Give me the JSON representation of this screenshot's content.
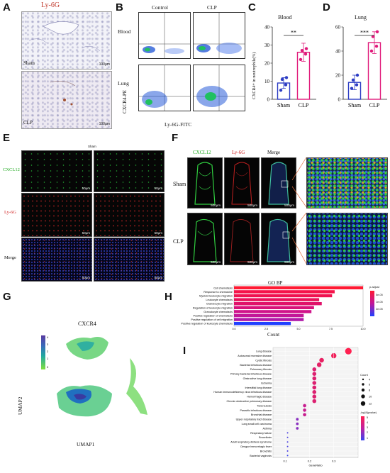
{
  "panels": {
    "A": {
      "letter": "A",
      "title": "Ly-6G",
      "sham_label": "Sham",
      "clp_label": "CLP",
      "scale": "100μm"
    },
    "B": {
      "letter": "B",
      "col_control": "Control",
      "col_clp": "CLP",
      "row_blood": "Blood",
      "row_lung": "Lung",
      "ylabel": "CXCR4-PE",
      "xlabel": "Ly-6G-FITC"
    },
    "C": {
      "letter": "C",
      "title": "Blood",
      "ylabel": "CXCR4+ in neutrophils(%)",
      "sig": "**",
      "categories": [
        "Sham",
        "CLP"
      ],
      "yticks": [
        "0",
        "10",
        "20",
        "30",
        "40"
      ]
    },
    "D": {
      "letter": "D",
      "title": "Lung",
      "sig": "***",
      "categories": [
        "Sham",
        "CLP"
      ],
      "yticks": [
        "0",
        "20",
        "40",
        "60"
      ]
    },
    "E": {
      "letter": "E",
      "title": "Sham",
      "rows": [
        "CXCL12",
        "Ly-6G",
        "Merge"
      ],
      "scale": "50μm"
    },
    "F": {
      "letter": "F",
      "cols": [
        "CXCL12",
        "Ly-6G",
        "Merge"
      ],
      "rows": [
        "Sham",
        "CLP"
      ],
      "scale": "500μm"
    },
    "G": {
      "letter": "G",
      "title": "CXCR4",
      "xlabel": "UMAP1",
      "ylabel": "UMAP2",
      "legend": [
        "4",
        "3",
        "2",
        "1",
        "0"
      ]
    },
    "H": {
      "letter": "H",
      "title": "GO BP",
      "xlabel": "Count",
      "legend_title": "p.adjust",
      "legend_ticks": [
        "5e-05",
        "1e-05",
        "2e-05"
      ],
      "xticks": [
        "0.0",
        "2.5",
        "5.0",
        "7.5",
        "10.0"
      ]
    },
    "I": {
      "letter": "I",
      "xlabel": "GeneRatio",
      "legend_count": "Count",
      "legend_p": "-log10(pvalue)",
      "count_ticks": [
        "4",
        "6",
        "8",
        "10",
        "12"
      ],
      "p_ticks": [
        "5",
        "4",
        "3",
        "2",
        "1"
      ],
      "xticks": [
        "0.1",
        "0.2",
        "0.3"
      ]
    }
  },
  "chart_data": [
    {
      "type": "bar",
      "panel": "C",
      "title": "Blood",
      "ylabel": "CXCR4+ in neutrophils(%)",
      "categories": [
        "Sham",
        "CLP"
      ],
      "values": [
        9,
        26
      ],
      "errors": [
        3,
        5
      ],
      "points": [
        [
          5,
          8,
          11,
          12
        ],
        [
          22,
          25,
          27,
          28
        ]
      ],
      "colors": [
        "#2c3cc4",
        "#e0197a"
      ],
      "ylim": [
        0,
        40
      ]
    },
    {
      "type": "bar",
      "panel": "D",
      "title": "Lung",
      "categories": [
        "Sham",
        "CLP"
      ],
      "values": [
        14,
        47
      ],
      "errors": [
        6,
        9
      ],
      "points": [
        [
          9,
          12,
          16,
          20
        ],
        [
          40,
          44,
          52,
          56
        ]
      ],
      "colors": [
        "#2c3cc4",
        "#e0197a"
      ],
      "ylim": [
        0,
        60
      ]
    },
    {
      "type": "bar",
      "panel": "H",
      "title": "GO BP",
      "xlabel": "Count",
      "orientation": "horizontal",
      "categories": [
        "Cell chemotaxis",
        "Response to chemokine",
        "Myeloid leukocyte migration",
        "Leukocyte chemotaxis",
        "Granulocyte migration",
        "Regulation of leukocyte migration",
        "Granulocyte chemotaxis",
        "Positive regulation of chemotaxis",
        "Positive regulation of cell migration",
        "Positive regulation of leukocyte chemotaxis"
      ],
      "values": [
        10,
        7.8,
        7.6,
        6.6,
        6.8,
        6.2,
        6.0,
        5.4,
        5.4,
        4.4
      ],
      "colors": [
        "#ff1a33",
        "#f5144a",
        "#ef1250",
        "#e8125a",
        "#e0126a",
        "#d8127a",
        "#d0148a",
        "#c21698",
        "#b01aa8",
        "#2040ff"
      ],
      "xlim": [
        0,
        10
      ]
    },
    {
      "type": "scatter",
      "panel": "I",
      "xlabel": "GeneRatio",
      "categories": [
        "Lung disease",
        "Autosomal recessive disease",
        "Cystic fibrosis",
        "Bacterial infectious disease",
        "Pulmonary fibrosis",
        "Primary bacterial infectious disease",
        "Obstructive lung disease",
        "Ischemia",
        "Interstitial lung disease",
        "Human immunodeficiency virus infectious disease",
        "Hemorrhagic disease",
        "Chronic obstructive pulmonary disease",
        "Tuberculosis",
        "Parasitic infectious disease",
        "Bronchial disease",
        "Upper respiratory tract disease",
        "Lung small cell carcinoma",
        "Asthma",
        "Respiratory failure",
        "Brucellosis",
        "Adult respiratory distress syndrome",
        "Dengue hemorrhagic fever",
        "Bronchitis",
        "Bacterial vaginosis"
      ],
      "x": [
        0.36,
        0.3,
        0.25,
        0.24,
        0.22,
        0.22,
        0.22,
        0.22,
        0.22,
        0.22,
        0.22,
        0.22,
        0.18,
        0.18,
        0.18,
        0.15,
        0.15,
        0.15,
        0.11,
        0.11,
        0.11,
        0.11,
        0.11,
        0.11
      ],
      "count": [
        12,
        10,
        9,
        9,
        8,
        8,
        8,
        8,
        8,
        8,
        8,
        8,
        7,
        7,
        7,
        6,
        6,
        6,
        4,
        4,
        4,
        4,
        4,
        4
      ],
      "colors": [
        "#ff2050",
        "#f0205a",
        "#e82062",
        "#e42066",
        "#dc2070",
        "#dc2070",
        "#dc2070",
        "#dc2070",
        "#dc2070",
        "#dc2070",
        "#dc2070",
        "#dc2070",
        "#c82090",
        "#c82090",
        "#c82090",
        "#8a30c0",
        "#8a30c0",
        "#8a30c0",
        "#4a40e0",
        "#4a40e0",
        "#4a40e0",
        "#4a40e0",
        "#4a40e0",
        "#3a44f0"
      ],
      "xlim": [
        0.05,
        0.4
      ]
    }
  ]
}
